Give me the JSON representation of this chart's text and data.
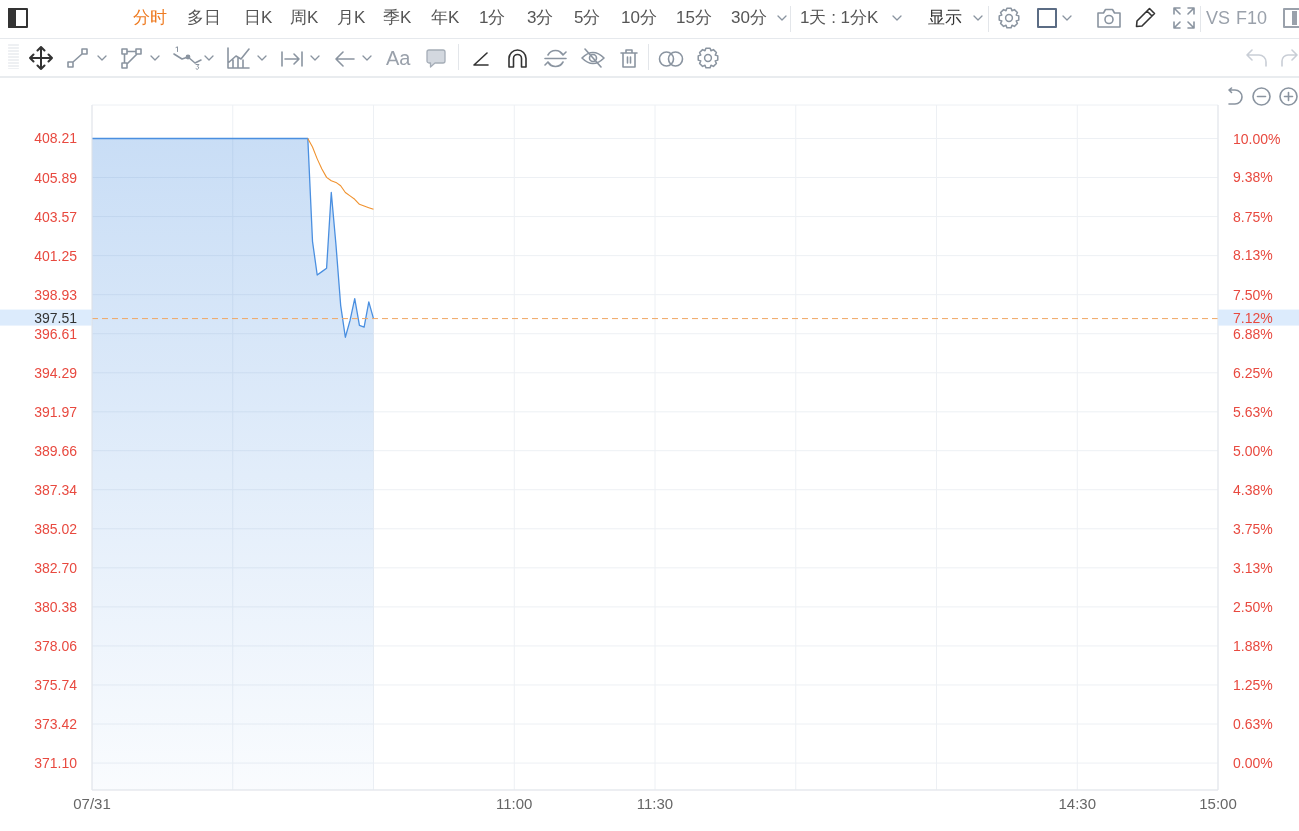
{
  "chart_data": {
    "type": "area",
    "categories": [
      "07/31",
      null,
      null,
      null,
      null,
      null,
      null,
      null,
      null,
      null,
      null,
      null,
      null,
      null,
      null,
      null,
      null,
      null,
      null,
      null,
      null,
      null,
      null,
      null,
      null,
      null,
      null,
      null,
      null,
      null,
      null,
      null,
      null,
      null,
      null,
      null,
      null,
      null,
      null,
      null,
      null,
      null,
      null,
      null,
      null,
      null,
      null,
      null,
      null,
      null,
      null,
      null,
      null,
      null,
      null,
      null,
      null,
      null,
      null,
      null,
      null,
      null,
      null,
      null,
      null,
      null,
      null,
      null,
      null,
      null,
      null,
      null,
      null,
      null,
      null,
      null,
      null,
      null,
      null,
      null,
      null,
      null,
      null,
      null,
      null,
      null,
      null,
      null,
      null,
      null,
      "11:00",
      null,
      null,
      null,
      null,
      null,
      null,
      null,
      null,
      null,
      null,
      null,
      null,
      null,
      null,
      null,
      null,
      null,
      null,
      null,
      null,
      null,
      null,
      null,
      null,
      null,
      null,
      null,
      null,
      null,
      "11:30",
      null,
      null,
      null,
      null,
      null,
      null,
      null,
      null,
      null,
      null,
      null,
      null,
      null,
      null,
      null,
      null,
      null,
      null,
      null,
      null,
      null,
      null,
      null,
      null,
      null,
      null,
      null,
      null,
      null,
      null,
      null,
      null,
      null,
      null,
      null,
      null,
      null,
      null,
      null,
      null,
      null,
      null,
      null,
      null,
      null,
      null,
      null,
      null,
      null,
      null,
      null,
      null,
      null,
      null,
      null,
      null,
      null,
      null,
      null,
      null,
      null,
      null,
      null,
      null,
      null,
      null,
      null,
      null,
      null,
      null,
      null,
      null,
      null,
      null,
      null,
      null,
      null,
      null,
      null,
      null,
      null,
      null,
      null,
      null,
      null,
      null,
      null,
      null,
      null,
      "14:30",
      null,
      null,
      null,
      null,
      null,
      null,
      null,
      null,
      null,
      null,
      null,
      null,
      null,
      null,
      null,
      null,
      null,
      null,
      null,
      null,
      null,
      null,
      null,
      null,
      null,
      null,
      null,
      null,
      null,
      "15:00"
    ],
    "series": [
      {
        "color": "#4a8fe0",
        "values": [
          408.21,
          408.21,
          408.21,
          408.21,
          408.21,
          408.21,
          408.21,
          408.21,
          408.21,
          408.21,
          408.21,
          408.21,
          408.21,
          408.21,
          408.21,
          408.21,
          408.21,
          408.21,
          408.21,
          408.21,
          408.21,
          408.21,
          408.21,
          408.21,
          408.21,
          408.21,
          408.21,
          408.21,
          408.21,
          408.21,
          408.21,
          408.21,
          408.21,
          408.21,
          408.21,
          408.21,
          408.21,
          408.21,
          408.21,
          408.21,
          408.21,
          408.21,
          408.21,
          408.21,
          408.21,
          408.21,
          408.21,
          402.1,
          400.1,
          400.3,
          400.5,
          405.0,
          401.9,
          398.3,
          396.4,
          397.4,
          398.7,
          397.1,
          397.0,
          398.5,
          397.51,
          null,
          null,
          null,
          null,
          null,
          null,
          null,
          null,
          null,
          null,
          null,
          null,
          null,
          null,
          null,
          null,
          null,
          null,
          null,
          null,
          null,
          null,
          null,
          null,
          null,
          null,
          null,
          null,
          null,
          null,
          null,
          null,
          null,
          null,
          null,
          null,
          null,
          null,
          null,
          null,
          null,
          null,
          null,
          null,
          null,
          null,
          null,
          null,
          null,
          null,
          null,
          null,
          null,
          null,
          null,
          null,
          null,
          null,
          null,
          null,
          null,
          null,
          null,
          null,
          null,
          null,
          null,
          null,
          null,
          null,
          null,
          null,
          null,
          null,
          null,
          null,
          null,
          null,
          null,
          null,
          null,
          null,
          null,
          null,
          null,
          null,
          null,
          null,
          null,
          null,
          null,
          null,
          null,
          null,
          null,
          null,
          null,
          null,
          null,
          null,
          null,
          null,
          null,
          null,
          null,
          null,
          null,
          null,
          null,
          null,
          null,
          null,
          null,
          null,
          null,
          null,
          null,
          null,
          null,
          null,
          null,
          null,
          null,
          null,
          null,
          null,
          null,
          null,
          null,
          null,
          null,
          null,
          null,
          null,
          null,
          null,
          null,
          null,
          null,
          null,
          null,
          null,
          null,
          null,
          null,
          null,
          null,
          null,
          null,
          null,
          null,
          null,
          null,
          null,
          null,
          null,
          null,
          null,
          null,
          null,
          null,
          null,
          null,
          null,
          null,
          null,
          null,
          null,
          null,
          null,
          null,
          null,
          null,
          null,
          null,
          null,
          null,
          null,
          null,
          null
        ]
      },
      {
        "type": "line",
        "color": "#f0922e",
        "values": [
          null,
          null,
          null,
          null,
          null,
          null,
          null,
          null,
          null,
          null,
          null,
          null,
          null,
          null,
          null,
          null,
          null,
          null,
          null,
          null,
          null,
          null,
          null,
          null,
          null,
          null,
          null,
          null,
          null,
          null,
          null,
          null,
          null,
          null,
          null,
          null,
          null,
          null,
          null,
          null,
          null,
          null,
          null,
          null,
          null,
          null,
          408.21,
          407.7,
          407.0,
          406.4,
          405.9,
          405.7,
          405.6,
          405.4,
          405.0,
          404.8,
          404.6,
          404.3,
          404.2,
          404.1,
          404.0,
          null,
          null,
          null,
          null,
          null,
          null,
          null,
          null,
          null,
          null,
          null,
          null,
          null,
          null,
          null,
          null,
          null,
          null,
          null,
          null,
          null,
          null,
          null,
          null,
          null,
          null,
          null,
          null,
          null,
          null,
          null,
          null,
          null,
          null,
          null,
          null,
          null,
          null,
          null,
          null,
          null,
          null,
          null,
          null,
          null,
          null,
          null,
          null,
          null,
          null,
          null,
          null,
          null,
          null,
          null,
          null,
          null,
          null,
          null,
          null,
          null,
          null,
          null,
          null,
          null,
          null,
          null,
          null,
          null,
          null,
          null,
          null,
          null,
          null,
          null,
          null,
          null,
          null,
          null,
          null,
          null,
          null,
          null,
          null,
          null,
          null,
          null,
          null,
          null,
          null,
          null,
          null,
          null,
          null,
          null,
          null,
          null,
          null,
          null,
          null,
          null,
          null,
          null,
          null,
          null,
          null,
          null,
          null,
          null,
          null,
          null,
          null,
          null,
          null,
          null,
          null,
          null,
          null,
          null,
          null,
          null,
          null,
          null,
          null,
          null,
          null,
          null,
          null,
          null,
          null,
          null,
          null,
          null,
          null,
          null,
          null,
          null,
          null,
          null,
          null,
          null,
          null,
          null,
          null,
          null,
          null,
          null,
          null,
          null,
          null,
          null,
          null,
          null,
          null,
          null,
          null,
          null,
          null,
          null,
          null,
          null,
          null,
          null,
          null,
          null,
          null,
          null,
          null,
          null,
          null,
          null,
          null,
          null,
          null,
          null,
          null,
          null,
          null,
          null,
          null
        ]
      }
    ],
    "ylim": [
      369.5,
      410.2
    ],
    "yticks": [
      {
        "value": 371.1,
        "label": "371.10"
      },
      373.42,
      375.74,
      378.06,
      380.38,
      {
        "value": 382.7,
        "label": "382.70"
      },
      385.02,
      387.34,
      389.66,
      391.97,
      394.29,
      396.61,
      398.93,
      401.25,
      403.57,
      405.89,
      408.21
    ],
    "y2lim": [
      -0.43,
      10.54
    ],
    "y2ticks": [
      {
        "value": 0,
        "label": "0.00%"
      },
      {
        "value": 0.63,
        "label": "0.63%"
      },
      {
        "value": 1.25,
        "label": "1.25%"
      },
      {
        "value": 1.88,
        "label": "1.88%"
      },
      {
        "value": 2.5,
        "label": "2.50%"
      },
      {
        "value": 3.13,
        "label": "3.13%"
      },
      {
        "value": 3.75,
        "label": "3.75%"
      },
      {
        "value": 4.38,
        "label": "4.38%"
      },
      {
        "value": 5,
        "label": "5.00%"
      },
      {
        "value": 5.63,
        "label": "5.63%"
      },
      {
        "value": 6.25,
        "label": "6.25%"
      },
      {
        "value": 6.88,
        "label": "6.88%"
      },
      {
        "value": 7.5,
        "label": "7.50%"
      },
      {
        "value": 8.13,
        "label": "8.13%"
      },
      {
        "value": 8.75,
        "label": "8.75%"
      },
      {
        "value": 9.38,
        "label": "9.38%"
      },
      {
        "value": 10,
        "label": "10.00%"
      }
    ],
    "grid": true,
    "ref_lines": [
      {
        "axis": "y",
        "value": 397.51,
        "label": "397.51",
        "color": "#f0a864",
        "line_style": "dashed"
      }
    ],
    "annotations": [
      "分时",
      "多日",
      "日K",
      "周K",
      "月K",
      "季K",
      "年K",
      "1分",
      "3分",
      "5分",
      "10分",
      "15分",
      "30分",
      "1天 : 1分K",
      "显示",
      "VS",
      "F10",
      "Aa",
      "7.12%"
    ]
  }
}
